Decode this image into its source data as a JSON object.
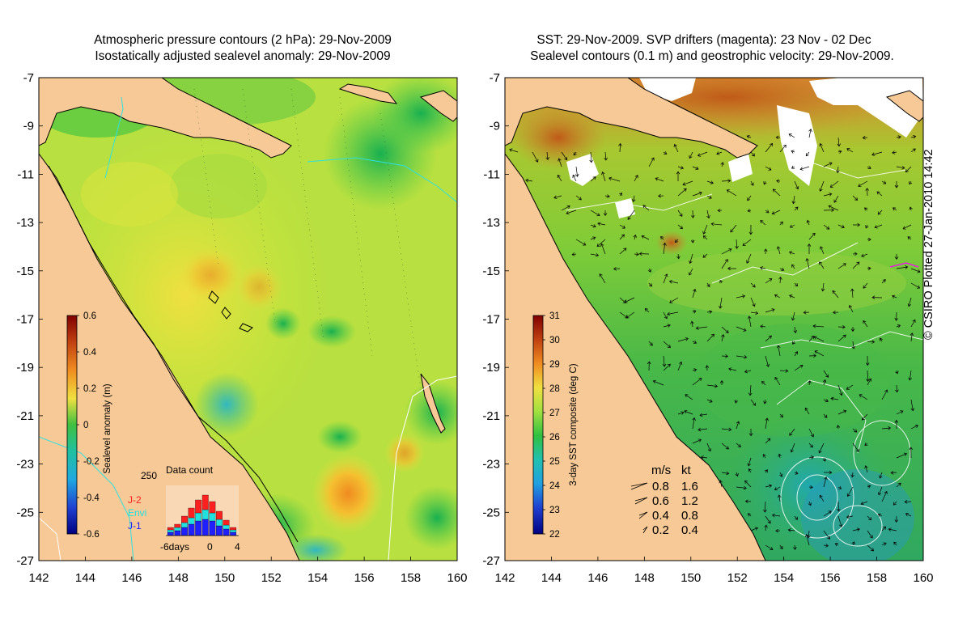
{
  "left_panel": {
    "title_line1": "Atmospheric pressure contours (2 hPa): 29-Nov-2009",
    "title_line2": "Isostatically adjusted sealevel anomaly: 29-Nov-2009",
    "colorbar": {
      "label": "Sealevel anomaly (m)",
      "ticks": [
        "0.6",
        "0.4",
        "0.2",
        "0",
        "-0.2",
        "-0.4",
        "-0.6"
      ],
      "range": [
        -0.6,
        0.6
      ]
    },
    "inset": {
      "title": "Data count",
      "max_label": "250",
      "legend": [
        {
          "label": "J-2",
          "color": "#ff2020"
        },
        {
          "label": "Envi",
          "color": "#20e0e0"
        },
        {
          "label": "J-1",
          "color": "#2020ff"
        }
      ],
      "xlabels": [
        "-6days",
        "0",
        "4"
      ]
    }
  },
  "right_panel": {
    "title_line1": "SST: 29-Nov-2009. SVP drifters (magenta): 23 Nov - 02 Dec",
    "title_line2": "Sealevel contours (0.1 m) and geostrophic velocity: 29-Nov-2009.",
    "colorbar": {
      "label": "3-day SST composite (deg C)",
      "ticks": [
        "31",
        "30",
        "29",
        "28",
        "27",
        "26",
        "25",
        "24",
        "23",
        "22"
      ],
      "range": [
        22,
        31
      ]
    },
    "velocity_key": {
      "header_ms": "m/s",
      "header_kt": "kt",
      "rows": [
        {
          "ms": "0.8",
          "kt": "1.6"
        },
        {
          "ms": "0.6",
          "kt": "1.2"
        },
        {
          "ms": "0.4",
          "kt": "0.8"
        },
        {
          "ms": "0.2",
          "kt": "0.4"
        }
      ]
    }
  },
  "axes": {
    "x_ticks": [
      "142",
      "144",
      "146",
      "148",
      "150",
      "152",
      "154",
      "156",
      "158",
      "160"
    ],
    "y_ticks": [
      "-7",
      "-9",
      "-11",
      "-13",
      "-15",
      "-17",
      "-19",
      "-21",
      "-23",
      "-25",
      "-27"
    ]
  },
  "credit": "© CSIRO Plotted 27-Jan-2010 14:42"
}
